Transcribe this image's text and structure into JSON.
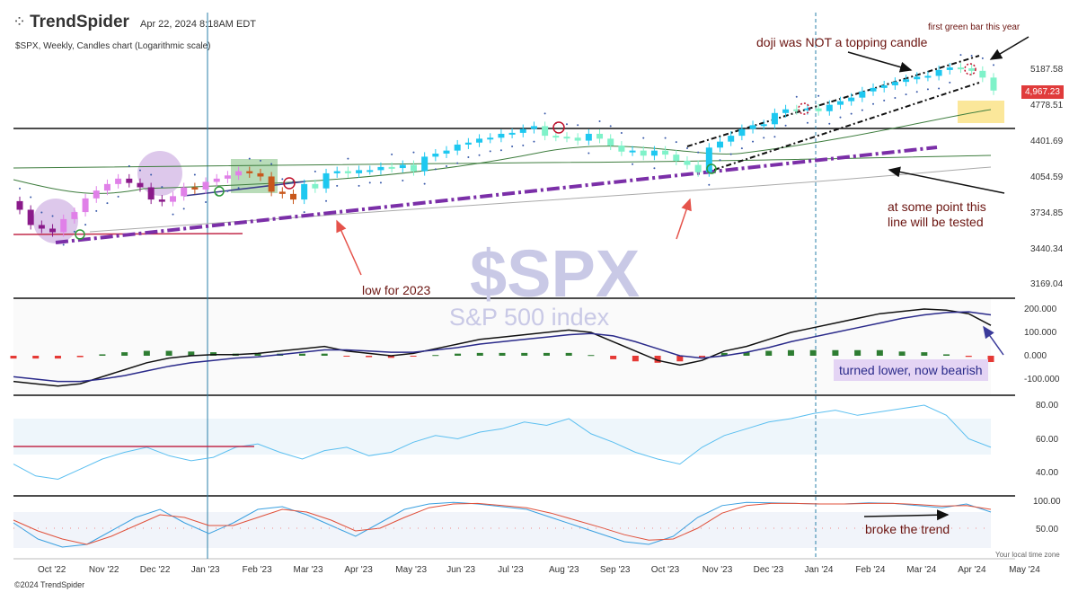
{
  "header": {
    "brand": "TrendSpider",
    "timestamp": "Apr 22, 2024 8:18AM EDT",
    "subtitle": "$SPX, Weekly, Candles chart (Logarithmic scale)",
    "copyright": "©2024 TrendSpider",
    "local_time_note": "Your local time zone"
  },
  "watermark": {
    "ticker": "$SPX",
    "name": "S&P 500 index"
  },
  "price_tag": "4,967.23",
  "annotations": {
    "first_green": "first green bar this year",
    "doji": "doji was NOT a topping candle",
    "low_2023": "low for 2023",
    "tested_1": "at some point this",
    "tested_2": "line will be tested",
    "turned_lower": "turned lower, now bearish",
    "broke_trend": "broke the trend"
  },
  "colors": {
    "bull_blue": "#1ec8f0",
    "bear_mint": "#7ff2c9",
    "pink": "#e080e8",
    "purple_bar": "#8a1a8a",
    "orange": "#c8581c",
    "trend_purple": "#7b2fa8",
    "macd_black": "#111111",
    "macd_signal": "#2a2a8a",
    "hist_green": "#2e7d32",
    "hist_red": "#e53935",
    "rsi": "#5bbff0",
    "stoch_k": "#3aa0e0",
    "stoch_d": "#e0503a",
    "annot_red": "#6b1410"
  },
  "chart_data": {
    "type": "candlestick",
    "title": "$SPX, Weekly, Candles chart (Logarithmic scale)",
    "x_ticks": [
      "Oct '22",
      "Nov '22",
      "Dec '22",
      "Jan '23",
      "Feb '23",
      "Mar '23",
      "Apr '23",
      "May '23",
      "Jun '23",
      "Jul '23",
      "Aug '23",
      "Sep '23",
      "Oct '23",
      "Nov '23",
      "Dec '23",
      "Jan '24",
      "Feb '24",
      "Mar '24",
      "Apr '24",
      "May '24"
    ],
    "price_axis": {
      "scale": "log",
      "ticks": [
        "5187.58",
        "4778.51",
        "4401.69",
        "4054.59",
        "3734.85",
        "3440.34",
        "3169.04"
      ]
    },
    "weekly_close": [
      3780,
      3650,
      3620,
      3590,
      3700,
      3760,
      3880,
      3950,
      4010,
      4060,
      4020,
      3980,
      3870,
      3850,
      3900,
      3980,
      3960,
      4030,
      4060,
      4090,
      4130,
      4110,
      4080,
      3940,
      3920,
      3870,
      4010,
      3970,
      4110,
      4130,
      4110,
      4140,
      4140,
      4170,
      4160,
      4190,
      4130,
      4270,
      4300,
      4330,
      4390,
      4410,
      4450,
      4460,
      4500,
      4510,
      4550,
      4580,
      4480,
      4470,
      4460,
      4430,
      4500,
      4450,
      4380,
      4320,
      4330,
      4280,
      4330,
      4290,
      4230,
      4190,
      4120,
      4360,
      4420,
      4480,
      4550,
      4590,
      4600,
      4720,
      4760,
      4750,
      4770,
      4740,
      4810,
      4850,
      4890,
      4960,
      5000,
      5030,
      5070,
      5100,
      5130,
      5140,
      5210,
      5240,
      5230,
      5200,
      5120,
      4970
    ],
    "macd": {
      "ticks": [
        "200.000",
        "100.000",
        "0.000",
        "-100.000"
      ],
      "macd_line": [
        -110,
        -120,
        -130,
        -120,
        -90,
        -60,
        -30,
        -10,
        0,
        5,
        5,
        10,
        20,
        30,
        40,
        20,
        10,
        0,
        10,
        30,
        50,
        70,
        80,
        90,
        100,
        110,
        100,
        60,
        20,
        -20,
        -40,
        -20,
        20,
        40,
        70,
        100,
        120,
        140,
        160,
        180,
        190,
        200,
        195,
        180,
        130
      ],
      "signal_line": [
        -90,
        -100,
        -110,
        -110,
        -100,
        -85,
        -65,
        -45,
        -30,
        -20,
        -10,
        -5,
        5,
        15,
        25,
        25,
        20,
        15,
        15,
        25,
        35,
        50,
        60,
        70,
        80,
        90,
        95,
        85,
        60,
        30,
        0,
        -10,
        0,
        15,
        35,
        60,
        80,
        100,
        120,
        140,
        160,
        175,
        185,
        188,
        175
      ]
    },
    "rsi": {
      "ticks": [
        "80.00",
        "60.00",
        "40.00"
      ],
      "values": [
        45,
        38,
        36,
        42,
        48,
        52,
        55,
        50,
        47,
        49,
        55,
        57,
        52,
        48,
        53,
        55,
        50,
        52,
        58,
        62,
        60,
        64,
        66,
        70,
        68,
        72,
        63,
        58,
        52,
        48,
        45,
        55,
        62,
        66,
        70,
        72,
        75,
        77,
        74,
        76,
        78,
        80,
        74,
        60,
        55
      ]
    },
    "stochastic": {
      "ticks": [
        "100.00",
        "50.00"
      ],
      "k": [
        60,
        30,
        15,
        20,
        45,
        70,
        85,
        60,
        40,
        60,
        85,
        90,
        75,
        55,
        35,
        60,
        85,
        95,
        98,
        95,
        90,
        85,
        70,
        55,
        40,
        25,
        20,
        35,
        70,
        92,
        98,
        97,
        96,
        95,
        95,
        97,
        96,
        92,
        88,
        95,
        80
      ],
      "d": [
        65,
        45,
        30,
        20,
        35,
        55,
        75,
        70,
        55,
        55,
        70,
        85,
        80,
        65,
        45,
        50,
        70,
        88,
        95,
        96,
        92,
        88,
        78,
        65,
        52,
        38,
        28,
        30,
        50,
        78,
        92,
        96,
        96,
        95,
        95,
        96,
        96,
        94,
        91,
        92,
        85
      ]
    }
  }
}
